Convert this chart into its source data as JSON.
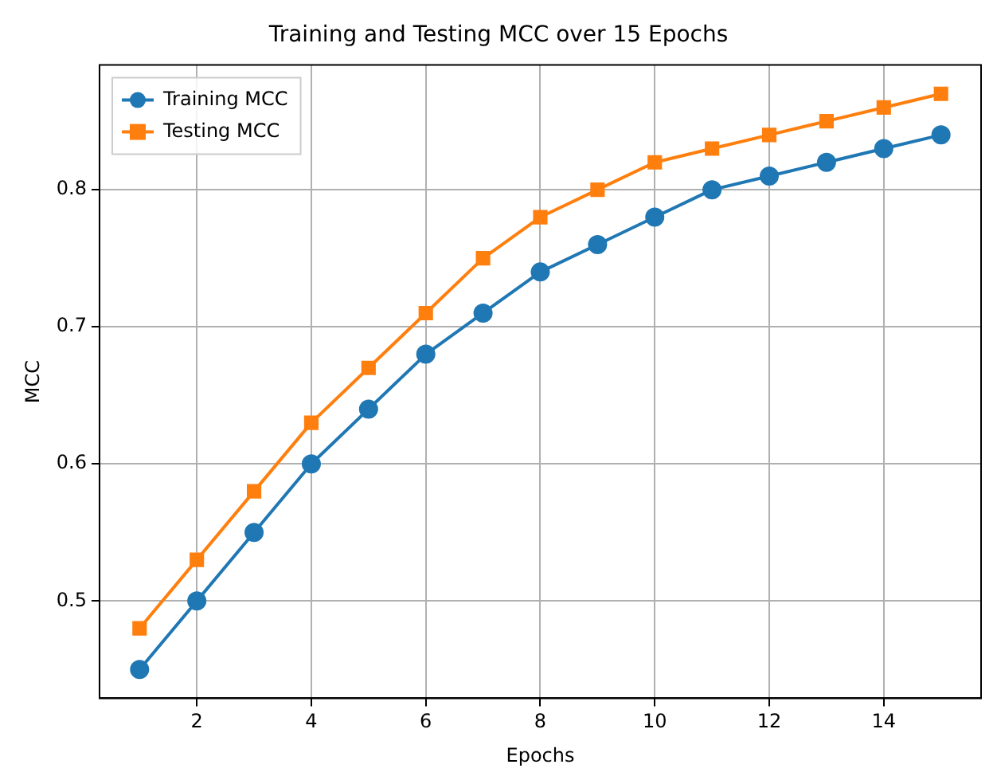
{
  "chart_data": {
    "type": "line",
    "title": "Training and Testing MCC over 15 Epochs",
    "xlabel": "Epochs",
    "ylabel": "MCC",
    "x": [
      1,
      2,
      3,
      4,
      5,
      6,
      7,
      8,
      9,
      10,
      11,
      12,
      13,
      14,
      15
    ],
    "series": [
      {
        "name": "Training MCC",
        "color": "#1f77b4",
        "marker": "circle",
        "values": [
          0.45,
          0.5,
          0.55,
          0.6,
          0.64,
          0.68,
          0.71,
          0.74,
          0.76,
          0.78,
          0.8,
          0.81,
          0.82,
          0.83,
          0.84
        ]
      },
      {
        "name": "Testing MCC",
        "color": "#ff7f0e",
        "marker": "square",
        "values": [
          0.48,
          0.53,
          0.58,
          0.63,
          0.67,
          0.71,
          0.75,
          0.78,
          0.8,
          0.82,
          0.83,
          0.84,
          0.85,
          0.86,
          0.87
        ]
      }
    ],
    "xlim": [
      0.3,
      15.7
    ],
    "xticks": [
      2,
      4,
      6,
      8,
      10,
      12,
      14
    ],
    "ylim": [
      0.429,
      0.891
    ],
    "yticks": [
      0.5,
      0.6,
      0.7,
      0.8
    ],
    "grid": true,
    "legend": "top left",
    "line_style": "solid"
  }
}
